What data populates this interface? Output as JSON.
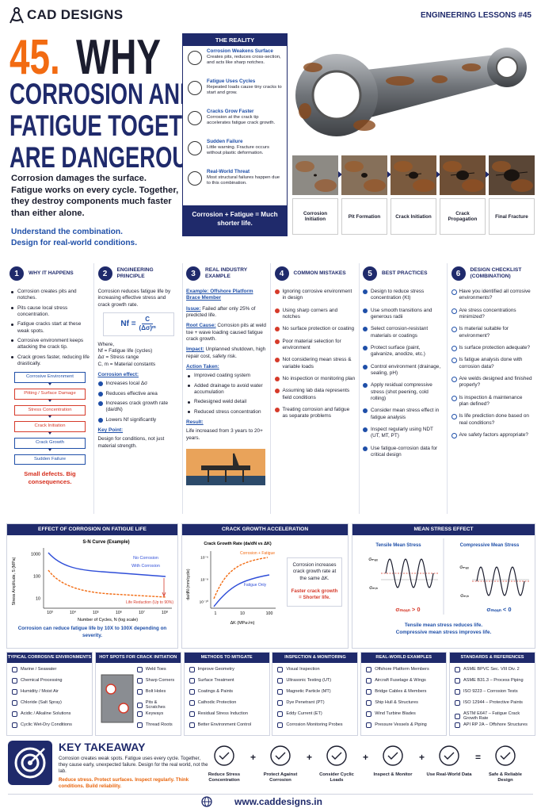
{
  "header": {
    "brand": "CAD DESIGNS",
    "lesson": "ENGINEERING LESSONS #45",
    "number": "45.",
    "headline": [
      "WHY",
      "CORROSION AND",
      "FATIGUE TOGETHER",
      "ARE DANGEROUS?"
    ],
    "intro": "Corrosion damages the surface. Fatigue works on every cycle. Together, they destroy components much faster than either alone.",
    "tagline": [
      "Understand the combination.",
      "Design for real-world conditions."
    ]
  },
  "reality": {
    "title": "THE REALITY",
    "items": [
      {
        "title": "Corrosion Weakens Surface",
        "text": "Creates pits, reduces cross-section, and acts like sharp notches."
      },
      {
        "title": "Fatigue Uses Cycles",
        "text": "Repeated loads cause tiny cracks to start and grow."
      },
      {
        "title": "Cracks Grow Faster",
        "text": "Corrosion at the crack tip accelerates fatigue crack growth."
      },
      {
        "title": "Sudden Failure",
        "text": "Little warning. Fracture occurs without plastic deformation."
      },
      {
        "title": "Real-World Threat",
        "text": "Most structural failures happen due to this combination."
      }
    ],
    "summary": "Corrosion + Fatigue = Much shorter life."
  },
  "stages": [
    "Corrosion Initiation",
    "Pit Formation",
    "Crack Initiation",
    "Crack Propagation",
    "Final Fracture"
  ],
  "columns": [
    {
      "number": "1",
      "title": "WHY IT HAPPENS",
      "blocks": [
        {
          "bullets": [
            "Corrosion creates pits and notches.",
            "Pits cause local stress concentration.",
            "Fatigue cracks start at these weak spots.",
            "Corrosive environment keeps attacking the crack tip.",
            "Crack grows faster, reducing life drastically."
          ]
        },
        {
          "flow": [
            "Corrosive Environment",
            "Pitting / Surface Damage",
            "Stress Concentration",
            "Crack Initiation",
            "Crack Growth",
            "Sudden Failure"
          ]
        },
        {
          "emphasis": "Small defects. Big consequences."
        }
      ]
    },
    {
      "number": "2",
      "title": "ENGINEERING PRINCIPLE",
      "blocks": [
        {
          "text": "Corrosion reduces fatigue life by increasing effective stress and crack growth rate."
        },
        {
          "formula": {
            "lhs": "Nf =",
            "numerator": "C",
            "denominator": "(Δσ)ᵐ"
          }
        },
        {
          "lines": [
            "Where,",
            "Nf = Fatigue life (cycles)",
            "Δσ = Stress range",
            "C, m = Material constants"
          ]
        },
        {
          "heading": "Corrosion effect:"
        },
        {
          "checks": [
            "Increases local Δσ",
            "Reduces effective area",
            "Increases crack growth rate (da/dN)",
            "Lowers Nf significantly"
          ]
        },
        {
          "heading": "Key Point:"
        },
        {
          "text": "Design for conditions, not just material strength."
        }
      ]
    },
    {
      "number": "3",
      "title": "REAL INDUSTRY EXAMPLE",
      "blocks": [
        {
          "highlight": "Example: Offshore Platform Brace Member"
        },
        {
          "label": "Issue:",
          "text": "Failed after only 25% of predicted life."
        },
        {
          "label": "Root Cause:",
          "text": "Corrosion pits at weld toe + wave loading caused fatigue crack growth."
        },
        {
          "label": "Impact:",
          "text": "Unplanned shutdown, high repair cost, safety risk."
        },
        {
          "heading": "Action Taken:"
        },
        {
          "bullets": [
            "Improved coating system",
            "Added drainage to avoid water accumulation",
            "Redesigned weld detail",
            "Reduced stress concentration"
          ]
        },
        {
          "heading": "Result:"
        },
        {
          "text": "Life increased from 3 years to 20+ years."
        }
      ]
    },
    {
      "number": "4",
      "title": "COMMON MISTAKES",
      "blocks": [
        {
          "crosses": [
            "Ignoring corrosive environment in design",
            "Using sharp corners and notches",
            "No surface protection or coating",
            "Poor material selection for environment",
            "Not considering mean stress & variable loads",
            "No inspection or monitoring plan",
            "Assuming lab data represents field conditions",
            "Treating corrosion and fatigue as separate problems"
          ]
        }
      ]
    },
    {
      "number": "5",
      "title": "BEST PRACTICES",
      "blocks": [
        {
          "checks": [
            "Design to reduce stress concentration (Kt)",
            "Use smooth transitions and generous radii",
            "Select corrosion-resistant materials or coatings",
            "Protect surface (paint, galvanize, anodize, etc.)",
            "Control environment (drainage, sealing, pH)",
            "Apply residual compressive stress (shot peening, cold rolling)",
            "Consider mean stress effect in fatigue analysis",
            "Inspect regularly using NDT (UT, MT, PT)",
            "Use fatigue-corrosion data for critical design"
          ]
        }
      ]
    },
    {
      "number": "6",
      "title": "DESIGN CHECKLIST (COMBINATION)",
      "blocks": [
        {
          "questions": [
            "Have you identified all corrosive environments?",
            "Are stress concentrations minimized?",
            "Is material suitable for environment?",
            "Is surface protection adequate?",
            "Is fatigue analysis done with corrosion data?",
            "Are welds designed and finished properly?",
            "Is inspection & maintenance plan defined?",
            "Is life prediction done based on real conditions?",
            "Are safety factors appropriate?"
          ]
        }
      ]
    }
  ],
  "sn_curve": {
    "title": "EFFECT OF CORROSION ON FATIGUE LIFE",
    "chart_title": "S-N Curve (Example)",
    "y_label": "Stress Amplitude, S (MPa)",
    "y_ticks": [
      "1000",
      "100",
      "10"
    ],
    "x_ticks": [
      "10³",
      "10⁴",
      "10⁵",
      "10⁶",
      "10⁷",
      "10⁸"
    ],
    "x_label": "Number of Cycles, N (log scale)",
    "curves": [
      "No Corrosion",
      "With Corrosion"
    ],
    "annotation": "Life Reduction (Up to 90%)",
    "caption": "Corrosion can reduce fatigue life by 10X to 100X depending on severity."
  },
  "crack_growth": {
    "title": "CRACK GROWTH ACCELERATION",
    "chart_title": "Crack Growth Rate (da/dN vs ΔK)",
    "y_label": "da/dN (mm/cycle)",
    "y_ticks": [
      "10⁻⁶",
      "10⁻⁸",
      "10⁻¹⁰"
    ],
    "x_ticks": [
      "1",
      "10",
      "100"
    ],
    "x_label": "ΔK (MPa√m)",
    "curves": [
      "Corrosion + Fatigue",
      "Fatigue Only"
    ],
    "note": "Corrosion increases crack growth rate at the same ΔK.",
    "note_emphasis": "Faster crack growth = Shorter life."
  },
  "mean_stress": {
    "title": "MEAN STRESS EFFECT",
    "cases": [
      {
        "title": "Tensile Mean Stress",
        "max": "σₘₐₓ",
        "min": "σₘᵢₙ",
        "mean": "σₘₑₐₙ > 0"
      },
      {
        "title": "Compressive Mean Stress",
        "max": "σₘₐₓ",
        "min": "σₘᵢₙ",
        "mean": "σₘₑₐₙ < 0"
      }
    ],
    "caption": [
      "Tensile mean stress reduces life.",
      "Compressive mean stress improves life."
    ]
  },
  "lists": [
    {
      "title": "TYPICAL CORROSIVE ENVIRONMENTS",
      "items": [
        "Marine / Seawater",
        "Chemical Processing",
        "Humidity / Moist Air",
        "Chloride (Salt Spray)",
        "Acidic / Alkaline Solutions",
        "Cyclic Wet-Dry Conditions"
      ]
    },
    {
      "title": "HOT SPOTS FOR CRACK INITIATION",
      "items": [
        "Weld Toes",
        "Sharp Corners",
        "Bolt Holes",
        "Pits & Scratches",
        "Keyways",
        "Thread Roots"
      ]
    },
    {
      "title": "METHODS TO MITIGATE",
      "items": [
        "Improve Geometry",
        "Surface Treatment",
        "Coatings & Paints",
        "Cathodic Protection",
        "Residual Stress Induction",
        "Better Environment Control"
      ]
    },
    {
      "title": "INSPECTION & MONITORING",
      "items": [
        "Visual Inspection",
        "Ultrasonic Testing (UT)",
        "Magnetic Particle (MT)",
        "Dye Penetrant (PT)",
        "Eddy Current (ET)",
        "Corrosion Monitoring Probes"
      ]
    },
    {
      "title": "REAL-WORLD EXAMPLES",
      "items": [
        "Offshore Platform Members",
        "Aircraft Fuselage & Wings",
        "Bridge Cables & Members",
        "Ship Hull & Structures",
        "Wind Turbine Blades",
        "Pressure Vessels & Piping"
      ]
    },
    {
      "title": "STANDARDS & REFERENCES",
      "items": [
        "ASME BPVC Sec. VIII Div. 2",
        "ASME B31.3 – Process Piping",
        "ISO 9223 – Corrosion Tests",
        "ISO 12944 – Protective Paints",
        "ASTM E647 – Fatigue Crack Growth Rate",
        "API RP 2A – Offshore Structures"
      ]
    }
  ],
  "takeaway": {
    "title": "KEY TAKEAWAY",
    "text": "Corrosion creates weak spots. Fatigue uses every cycle. Together, they cause early, unexpected failure. Design for the real world, not the lab.",
    "highlight": "Reduce stress. Protect surfaces. Inspect regularly. Think conditions. Build reliability."
  },
  "steps": [
    "Reduce Stress Concentration",
    "Protect Against Corrosion",
    "Consider Cyclic Loads",
    "Inspect & Monitor",
    "Use Real-World Data",
    "Safe & Reliable Design"
  ],
  "operators": [
    "+",
    "+",
    "+",
    "+",
    "="
  ],
  "footer": {
    "url": "www.caddesigns.in"
  }
}
